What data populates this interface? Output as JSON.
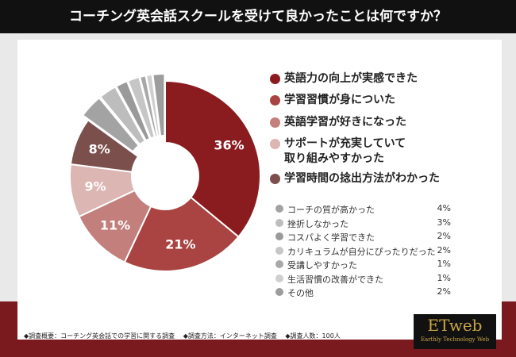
{
  "chart_data": {
    "type": "donut",
    "title": "コーチング英会話スクールを受けて良かったことは何ですか？",
    "categories": [
      "英語力の向上が実感できた",
      "学習習慣が身についた",
      "英語学習が好きになった",
      "サポートが充実していて\n取り組みやすかった",
      "学習時間の捻出方法がわかった",
      "コーチの質が高かった",
      "挫折しなかった",
      "コスパよく学習できた",
      "カリキュラムが自分にぴったりだった",
      "受講しやすかった",
      "生活習慣の改善ができた",
      "その他"
    ],
    "values": [
      36,
      21,
      11,
      9,
      8,
      4,
      3,
      2,
      2,
      1,
      1,
      2
    ],
    "value_labels": [
      "36%",
      "21%",
      "11%",
      "9%",
      "8%",
      "4%",
      "3%",
      "2%",
      "2%",
      "1%",
      "1%",
      "2%"
    ],
    "colors": [
      "#8a1c20",
      "#a94442",
      "#c27f7c",
      "#dcb6b3",
      "#7b4f4c",
      "#a3a3a3",
      "#bdbdbd",
      "#9a9a9a",
      "#c6c6c6",
      "#a8a8a8",
      "#cfcfcf",
      "#9d9d9d"
    ]
  },
  "footer": [
    "◆調査概要：コーチング英会話での学習に関する調査",
    "◆調査方法：インターネット調査",
    "◆調査人数：100人"
  ],
  "logo": {
    "title": "ETweb",
    "subtitle": "Earthly Technology Web"
  }
}
